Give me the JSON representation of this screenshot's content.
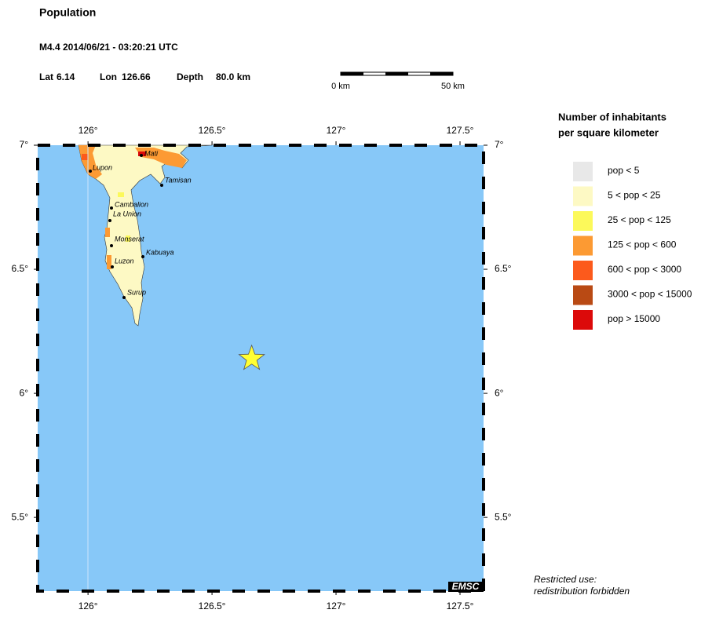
{
  "header": {
    "title": "Population",
    "event": "M4.4  2014/06/21 - 03:20:21 UTC",
    "lat_label": "Lat",
    "lat": 6.14,
    "lon_label": "Lon",
    "lon": 126.66,
    "depth_label": "Depth",
    "depth": "80.0 km"
  },
  "scale_bar": {
    "start": "0 km",
    "end": "50 km"
  },
  "map": {
    "lonlim": [
      125.797,
      127.595
    ],
    "latlim": [
      5.203,
      7
    ],
    "lonticks": [
      {
        "value": 126,
        "label": "126°"
      },
      {
        "value": 126.5,
        "label": "126.5°"
      },
      {
        "value": 127,
        "label": "127°"
      },
      {
        "value": 127.5,
        "label": "127.5°"
      }
    ],
    "latticks": [
      {
        "value": 7,
        "label": "7°"
      },
      {
        "value": 6.5,
        "label": "6.5°"
      },
      {
        "value": 6,
        "label": "6°"
      },
      {
        "value": 5.5,
        "label": "5.5°"
      }
    ],
    "cities": [
      "Mati",
      "Lupon",
      "Tamisan",
      "Cambalion",
      "La Union",
      "Monserat",
      "Kabuaya",
      "Luzon",
      "Surup"
    ],
    "credit": "EMSC",
    "sea_color": "#87c8f8",
    "epicenter_color": "#ffff33"
  },
  "legend": {
    "title": [
      "Number of inhabitants",
      "per square kilometer"
    ],
    "items": [
      {
        "label": "pop < 5",
        "color": "#e8e8e8"
      },
      {
        "label": "5 < pop < 25",
        "color": "#fdf9c4"
      },
      {
        "label": "25 < pop < 125",
        "color": "#fcf95a"
      },
      {
        "label": "125 < pop < 600",
        "color": "#fc9a33"
      },
      {
        "label": "600 < pop < 3000",
        "color": "#fc5a1c"
      },
      {
        "label": "3000 < pop < 15000",
        "color": "#b94a14"
      },
      {
        "label": "pop > 15000",
        "color": "#dc0a0a"
      }
    ]
  },
  "notice": [
    "Restricted use:",
    "redistribution forbidden"
  ]
}
